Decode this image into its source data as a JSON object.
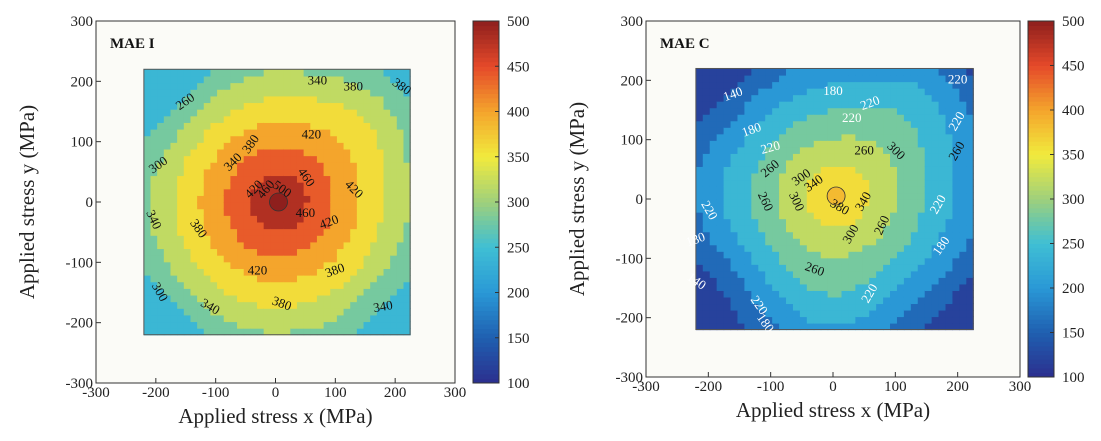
{
  "colormap": {
    "stops": [
      {
        "v": 100,
        "color": "#2c2f8e"
      },
      {
        "v": 150,
        "color": "#1f5fb0"
      },
      {
        "v": 200,
        "color": "#2a98d6"
      },
      {
        "v": 250,
        "color": "#3fbfd4"
      },
      {
        "v": 275,
        "color": "#6cc7a8"
      },
      {
        "v": 300,
        "color": "#9fd07c"
      },
      {
        "v": 350,
        "color": "#f1ea3d"
      },
      {
        "v": 400,
        "color": "#f4a52c"
      },
      {
        "v": 450,
        "color": "#e5492a"
      },
      {
        "v": 500,
        "color": "#8e1f1d"
      }
    ]
  },
  "chart_data": [
    {
      "type": "contour",
      "title": "MAE I",
      "xlabel": "Applied stress x (MPa)",
      "ylabel": "Applied stress y (MPa)",
      "xlim": [
        -300,
        300
      ],
      "ylim": [
        -300,
        300
      ],
      "xticks": [
        -300,
        -200,
        -100,
        0,
        100,
        200,
        300
      ],
      "yticks": [
        -300,
        -200,
        -100,
        0,
        100,
        200,
        300
      ],
      "data_extent": {
        "x": [
          -220,
          225
        ],
        "y": [
          -220,
          220
        ]
      },
      "colorbar": {
        "range": [
          100,
          500
        ],
        "ticks": [
          100,
          150,
          200,
          250,
          300,
          350,
          400,
          450,
          500
        ]
      },
      "contour_levels": [
        260,
        300,
        340,
        380,
        420,
        460,
        500
      ],
      "peak": {
        "x": 5,
        "y": 0,
        "value": 505
      },
      "contour_labels": [
        {
          "text": "340",
          "x": 70,
          "y": 200,
          "rot": 0
        },
        {
          "text": "260",
          "x": -150,
          "y": 165,
          "rot": -35
        },
        {
          "text": "380",
          "x": 130,
          "y": 190,
          "rot": 0
        },
        {
          "text": "380",
          "x": 210,
          "y": 190,
          "rot": 35
        },
        {
          "text": "420",
          "x": 60,
          "y": 110,
          "rot": 0
        },
        {
          "text": "380",
          "x": -40,
          "y": 95,
          "rot": -55
        },
        {
          "text": "340",
          "x": -70,
          "y": 65,
          "rot": -45
        },
        {
          "text": "300",
          "x": -195,
          "y": 60,
          "rot": -35
        },
        {
          "text": "420",
          "x": -35,
          "y": 20,
          "rot": -45
        },
        {
          "text": "460",
          "x": -15,
          "y": 20,
          "rot": -50
        },
        {
          "text": "500",
          "x": 10,
          "y": 20,
          "rot": 35
        },
        {
          "text": "460",
          "x": 50,
          "y": 40,
          "rot": 55
        },
        {
          "text": "420",
          "x": 130,
          "y": 20,
          "rot": 45
        },
        {
          "text": "460",
          "x": 50,
          "y": -20,
          "rot": 0
        },
        {
          "text": "420",
          "x": 90,
          "y": -35,
          "rot": -20
        },
        {
          "text": "340",
          "x": -205,
          "y": -30,
          "rot": 65
        },
        {
          "text": "380",
          "x": -130,
          "y": -45,
          "rot": 55
        },
        {
          "text": "420",
          "x": -30,
          "y": -115,
          "rot": 0
        },
        {
          "text": "380",
          "x": 100,
          "y": -115,
          "rot": -20
        },
        {
          "text": "380",
          "x": 10,
          "y": -170,
          "rot": 20
        },
        {
          "text": "300",
          "x": -195,
          "y": -150,
          "rot": 60
        },
        {
          "text": "340",
          "x": -110,
          "y": -175,
          "rot": 30
        },
        {
          "text": "340",
          "x": 180,
          "y": -175,
          "rot": -10
        }
      ]
    },
    {
      "type": "contour",
      "title": "MAE C",
      "xlabel": "Applied stress x (MPa)",
      "ylabel": "Applied stress y (MPa)",
      "xlim": [
        -300,
        300
      ],
      "ylim": [
        -300,
        300
      ],
      "xticks": [
        -300,
        -200,
        -100,
        0,
        100,
        200,
        300
      ],
      "yticks": [
        -300,
        -200,
        -100,
        0,
        100,
        200,
        300
      ],
      "data_extent": {
        "x": [
          -220,
          225
        ],
        "y": [
          -220,
          220
        ]
      },
      "colorbar": {
        "range": [
          100,
          500
        ],
        "ticks": [
          100,
          150,
          200,
          250,
          300,
          350,
          400,
          450,
          500
        ]
      },
      "contour_levels": [
        140,
        180,
        220,
        260,
        300,
        340,
        380
      ],
      "peak": {
        "x": 5,
        "y": 5,
        "value": 385
      },
      "contour_labels": [
        {
          "text": "140",
          "x": -160,
          "y": 175,
          "rot": -20
        },
        {
          "text": "180",
          "x": 0,
          "y": 180,
          "rot": 0
        },
        {
          "text": "220",
          "x": 200,
          "y": 200,
          "rot": 0
        },
        {
          "text": "220",
          "x": 60,
          "y": 160,
          "rot": -20
        },
        {
          "text": "180",
          "x": -130,
          "y": 115,
          "rot": -20
        },
        {
          "text": "220",
          "x": 200,
          "y": 130,
          "rot": -60
        },
        {
          "text": "220",
          "x": 30,
          "y": 135,
          "rot": 0
        },
        {
          "text": "260",
          "x": 200,
          "y": 80,
          "rot": -60
        },
        {
          "text": "220",
          "x": -100,
          "y": 85,
          "rot": -15
        },
        {
          "text": "260",
          "x": 50,
          "y": 80,
          "rot": 0
        },
        {
          "text": "300",
          "x": 100,
          "y": 80,
          "rot": 45
        },
        {
          "text": "260",
          "x": -100,
          "y": 50,
          "rot": -40
        },
        {
          "text": "300",
          "x": -50,
          "y": 35,
          "rot": -35
        },
        {
          "text": "340",
          "x": -30,
          "y": 25,
          "rot": -35
        },
        {
          "text": "220",
          "x": -200,
          "y": -20,
          "rot": 60
        },
        {
          "text": "260",
          "x": -110,
          "y": -5,
          "rot": 65
        },
        {
          "text": "300",
          "x": -60,
          "y": -5,
          "rot": 65
        },
        {
          "text": "380",
          "x": 10,
          "y": -15,
          "rot": 30
        },
        {
          "text": "340",
          "x": 50,
          "y": -5,
          "rot": -60
        },
        {
          "text": "220",
          "x": 170,
          "y": -10,
          "rot": -60
        },
        {
          "text": "180",
          "x": -220,
          "y": -70,
          "rot": -20
        },
        {
          "text": "300",
          "x": 30,
          "y": -60,
          "rot": -60
        },
        {
          "text": "260",
          "x": 80,
          "y": -45,
          "rot": -65
        },
        {
          "text": "180",
          "x": 175,
          "y": -80,
          "rot": -55
        },
        {
          "text": "260",
          "x": -30,
          "y": -120,
          "rot": 20
        },
        {
          "text": "140",
          "x": -220,
          "y": -140,
          "rot": 35
        },
        {
          "text": "220",
          "x": -120,
          "y": -180,
          "rot": 55
        },
        {
          "text": "220",
          "x": 60,
          "y": -160,
          "rot": -60
        },
        {
          "text": "180",
          "x": -110,
          "y": -210,
          "rot": 55
        }
      ]
    }
  ]
}
